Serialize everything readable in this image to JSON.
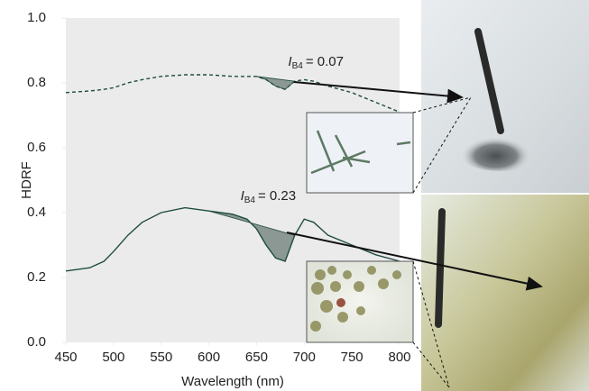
{
  "chart_data": {
    "type": "line",
    "x_label": "Wavelength (nm)",
    "y_label": "HDRF",
    "x": [
      450,
      475,
      490,
      500,
      515,
      530,
      550,
      575,
      600,
      625,
      640,
      650,
      660,
      670,
      680,
      690,
      700,
      710,
      725,
      750,
      775,
      800
    ],
    "series": [
      {
        "color": "#1f4d40",
        "dashed": true,
        "shade": [
          650,
          690
        ],
        "values": [
          0.77,
          0.775,
          0.78,
          0.785,
          0.8,
          0.81,
          0.82,
          0.825,
          0.825,
          0.82,
          0.82,
          0.82,
          0.81,
          0.79,
          0.78,
          0.805,
          0.81,
          0.805,
          0.79,
          0.77,
          0.74,
          0.71
        ]
      },
      {
        "color": "#1f4d40",
        "dashed": false,
        "shade": [
          600,
          690
        ],
        "values": [
          0.22,
          0.23,
          0.25,
          0.28,
          0.33,
          0.37,
          0.4,
          0.415,
          0.405,
          0.395,
          0.38,
          0.35,
          0.3,
          0.26,
          0.25,
          0.33,
          0.38,
          0.37,
          0.33,
          0.3,
          0.27,
          0.25
        ]
      }
    ],
    "annotations": [
      {
        "symbol": "I",
        "subscript": "B4",
        "text": "= 0.07"
      },
      {
        "symbol": "I",
        "subscript": "B4",
        "text": "= 0.23"
      }
    ],
    "shade_color": "#8c9894",
    "xlim": [
      450,
      800
    ],
    "ylim": [
      0,
      1
    ],
    "xticks": [
      450,
      500,
      550,
      600,
      650,
      700,
      750,
      800
    ],
    "yticks": [
      {
        "value": 0,
        "label": "0.0"
      },
      0.2,
      0.4,
      0.6,
      0.8,
      {
        "value": 1,
        "label": "1.0"
      }
    ]
  }
}
